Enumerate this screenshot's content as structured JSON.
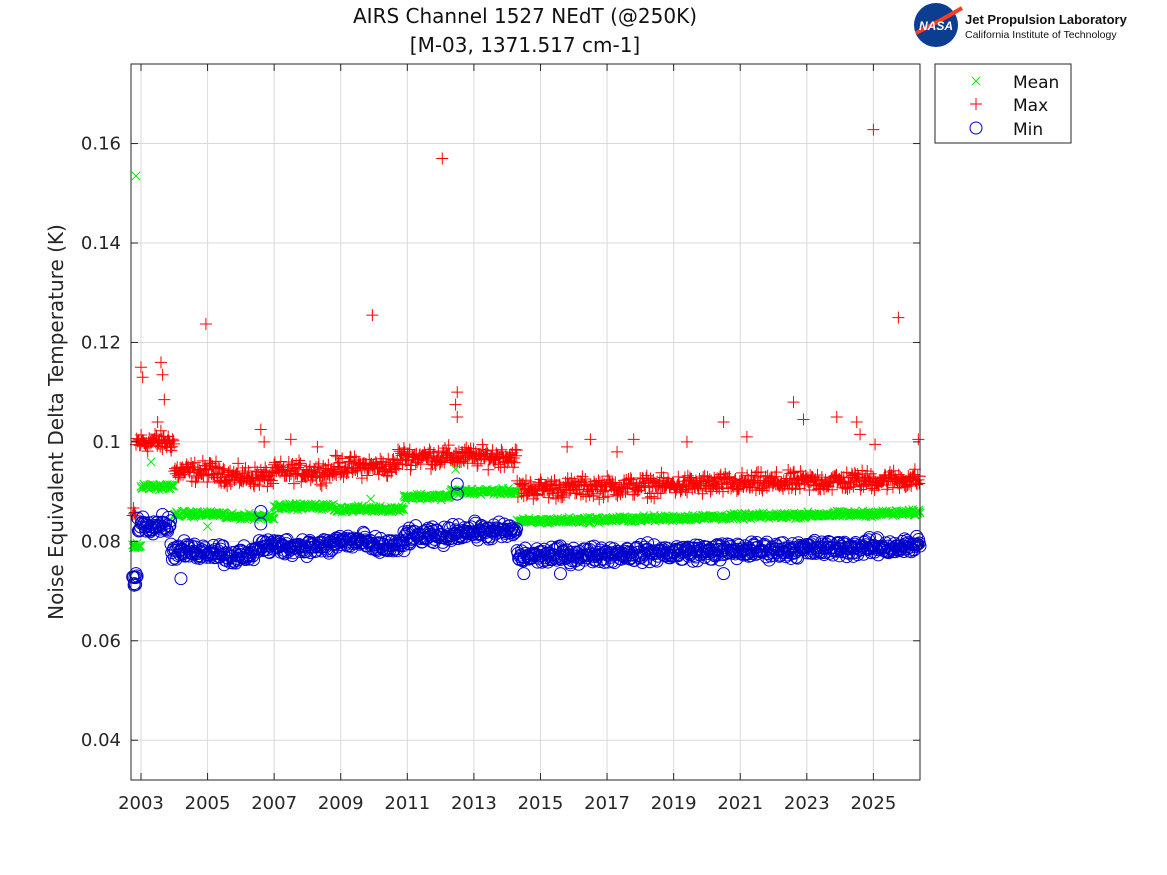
{
  "logo": {
    "nasa_text": "NASA",
    "org_name": "Jet Propulsion Laboratory",
    "org_sub": "California Institute of Technology"
  },
  "colors": {
    "mean": "#00ee00",
    "max": "#ff0000",
    "min": "#0000cc",
    "grid": "#d9d9d9",
    "nasa_blue": "#0b3d91",
    "nasa_red": "#fc3d21"
  },
  "chart_data": {
    "type": "scatter",
    "title": "AIRS Channel 1527 NEdT (@250K)",
    "subtitle": "[M-03, 1371.517 cm-1]",
    "xlabel": "",
    "ylabel": "Noise Equivalent Delta Temperature (K)",
    "xlim": [
      2002.7,
      2026.4
    ],
    "ylim": [
      0.032,
      0.176
    ],
    "x_ticks": [
      2003,
      2005,
      2007,
      2009,
      2011,
      2013,
      2015,
      2017,
      2019,
      2021,
      2023,
      2025
    ],
    "x_tick_labels": [
      "2003",
      "2005",
      "2007",
      "2009",
      "2011",
      "2013",
      "2015",
      "2017",
      "2019",
      "2021",
      "2023",
      "2025"
    ],
    "y_ticks": [
      0.04,
      0.06,
      0.08,
      0.1,
      0.12,
      0.14,
      0.16
    ],
    "y_tick_labels": [
      "0.04",
      "0.06",
      "0.08",
      "0.1",
      "0.12",
      "0.14",
      "0.16"
    ],
    "grid": true,
    "legend_position": "outside top-right",
    "legend": [
      "Mean",
      "Max",
      "Min"
    ],
    "series": [
      {
        "name": "Mean",
        "marker": "x",
        "segments": [
          {
            "x0": 2002.75,
            "x1": 2003.0,
            "y": 0.079
          },
          {
            "x0": 2003.0,
            "x1": 2004.0,
            "y": 0.091
          },
          {
            "x0": 2004.0,
            "x1": 2005.5,
            "y": 0.0855
          },
          {
            "x0": 2005.5,
            "x1": 2007.0,
            "y": 0.085
          },
          {
            "x0": 2007.0,
            "x1": 2008.8,
            "y": 0.087
          },
          {
            "x0": 2008.8,
            "x1": 2010.9,
            "y": 0.0865
          },
          {
            "x0": 2010.9,
            "x1": 2012.3,
            "y": 0.089
          },
          {
            "x0": 2012.3,
            "x1": 2014.3,
            "y": 0.09
          },
          {
            "x0": 2014.3,
            "x1": 2026.4,
            "y_start": 0.084,
            "y_end": 0.0858
          }
        ],
        "outliers": [
          {
            "x": 2002.85,
            "y": 0.1535
          },
          {
            "x": 2003.3,
            "y": 0.096
          },
          {
            "x": 2009.9,
            "y": 0.0885
          },
          {
            "x": 2012.45,
            "y": 0.0945
          },
          {
            "x": 2005.0,
            "y": 0.083
          }
        ]
      },
      {
        "name": "Max",
        "marker": "+",
        "segments": [
          {
            "x0": 2002.75,
            "x1": 2002.85,
            "y": 0.085
          },
          {
            "x0": 2002.85,
            "x1": 2004.0,
            "y": 0.1
          },
          {
            "x0": 2004.0,
            "x1": 2005.5,
            "y": 0.094
          },
          {
            "x0": 2005.5,
            "x1": 2007.0,
            "y": 0.093
          },
          {
            "x0": 2007.0,
            "x1": 2008.8,
            "y": 0.094
          },
          {
            "x0": 2008.8,
            "x1": 2010.7,
            "y": 0.095
          },
          {
            "x0": 2010.7,
            "x1": 2012.0,
            "y": 0.097
          },
          {
            "x0": 2012.0,
            "x1": 2014.3,
            "y": 0.097
          },
          {
            "x0": 2014.3,
            "x1": 2026.4,
            "y_start": 0.0905,
            "y_end": 0.0925
          }
        ],
        "outliers": [
          {
            "x": 2003.0,
            "y": 0.115
          },
          {
            "x": 2003.05,
            "y": 0.113
          },
          {
            "x": 2003.6,
            "y": 0.116
          },
          {
            "x": 2003.65,
            "y": 0.1135
          },
          {
            "x": 2003.7,
            "y": 0.1085
          },
          {
            "x": 2003.5,
            "y": 0.104
          },
          {
            "x": 2004.95,
            "y": 0.1237
          },
          {
            "x": 2006.6,
            "y": 0.1025
          },
          {
            "x": 2006.7,
            "y": 0.1
          },
          {
            "x": 2007.5,
            "y": 0.1005
          },
          {
            "x": 2008.3,
            "y": 0.099
          },
          {
            "x": 2009.95,
            "y": 0.1255
          },
          {
            "x": 2012.05,
            "y": 0.157
          },
          {
            "x": 2012.5,
            "y": 0.11
          },
          {
            "x": 2012.45,
            "y": 0.1075
          },
          {
            "x": 2012.5,
            "y": 0.105
          },
          {
            "x": 2015.8,
            "y": 0.099
          },
          {
            "x": 2016.5,
            "y": 0.1005
          },
          {
            "x": 2017.3,
            "y": 0.098
          },
          {
            "x": 2017.8,
            "y": 0.1005
          },
          {
            "x": 2019.4,
            "y": 0.1
          },
          {
            "x": 2020.5,
            "y": 0.104
          },
          {
            "x": 2021.2,
            "y": 0.101
          },
          {
            "x": 2022.6,
            "y": 0.108
          },
          {
            "x": 2022.9,
            "y": 0.1045
          },
          {
            "x": 2023.9,
            "y": 0.105
          },
          {
            "x": 2024.5,
            "y": 0.104
          },
          {
            "x": 2024.6,
            "y": 0.1015
          },
          {
            "x": 2025.0,
            "y": 0.1628
          },
          {
            "x": 2025.05,
            "y": 0.0995
          },
          {
            "x": 2025.75,
            "y": 0.125
          },
          {
            "x": 2026.35,
            "y": 0.1005
          }
        ]
      },
      {
        "name": "Min",
        "marker": "o",
        "segments": [
          {
            "x0": 2002.75,
            "x1": 2002.9,
            "y": 0.0725
          },
          {
            "x0": 2002.9,
            "x1": 2003.9,
            "y": 0.0835
          },
          {
            "x0": 2003.9,
            "x1": 2005.5,
            "y": 0.078
          },
          {
            "x0": 2005.5,
            "x1": 2006.4,
            "y": 0.077
          },
          {
            "x0": 2006.4,
            "x1": 2008.8,
            "y": 0.079
          },
          {
            "x0": 2008.8,
            "x1": 2009.8,
            "y": 0.08
          },
          {
            "x0": 2009.8,
            "x1": 2010.9,
            "y": 0.079
          },
          {
            "x0": 2010.9,
            "x1": 2012.3,
            "y": 0.081
          },
          {
            "x0": 2012.3,
            "x1": 2014.3,
            "y": 0.082
          },
          {
            "x0": 2014.3,
            "x1": 2026.4,
            "y_start": 0.077,
            "y_end": 0.079
          }
        ],
        "outliers": [
          {
            "x": 2002.8,
            "y": 0.0715
          },
          {
            "x": 2002.85,
            "y": 0.0735
          },
          {
            "x": 2004.2,
            "y": 0.0725
          },
          {
            "x": 2006.6,
            "y": 0.086
          },
          {
            "x": 2006.6,
            "y": 0.0835
          },
          {
            "x": 2012.5,
            "y": 0.0915
          },
          {
            "x": 2012.5,
            "y": 0.0895
          },
          {
            "x": 2014.5,
            "y": 0.0735
          },
          {
            "x": 2015.6,
            "y": 0.0735
          },
          {
            "x": 2020.5,
            "y": 0.0735
          },
          {
            "x": 2026.3,
            "y": 0.081
          }
        ]
      }
    ]
  }
}
